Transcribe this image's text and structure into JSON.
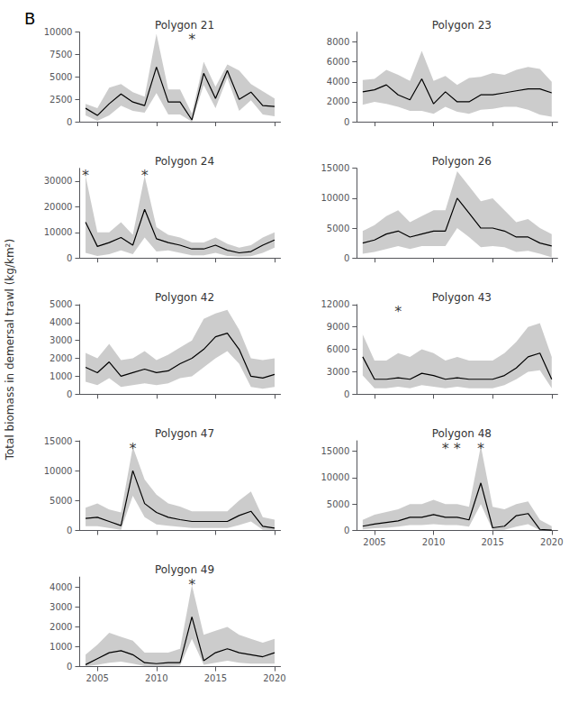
{
  "title": "B",
  "ylabel": "Total biomass in demersal trawl (kg/km²)",
  "chart_data": [
    {
      "type": "line",
      "title": "Polygon 21",
      "x": [
        2004,
        2005,
        2006,
        2007,
        2008,
        2009,
        2010,
        2011,
        2012,
        2013,
        2014,
        2015,
        2016,
        2017,
        2018,
        2019,
        2020
      ],
      "xlim": [
        2003.5,
        2020.5
      ],
      "xticks": [
        2005,
        2010,
        2015,
        2020
      ],
      "ylim": [
        0,
        10000
      ],
      "yticks": [
        0,
        2500,
        5000,
        7500,
        10000
      ],
      "grid": false,
      "tick_labels": "y",
      "series": [
        {
          "type": "band",
          "color": "#aaaaaa",
          "lower": [
            700,
            100,
            700,
            1800,
            1200,
            1000,
            3200,
            800,
            800,
            0,
            4100,
            1500,
            4900,
            1200,
            2400,
            800,
            600
          ],
          "upper": [
            2000,
            1500,
            3800,
            4200,
            3300,
            2800,
            9800,
            3600,
            3600,
            900,
            6700,
            3900,
            6400,
            5700,
            4200,
            3400,
            2600
          ]
        },
        {
          "type": "line",
          "color": "#000000",
          "values": [
            1500,
            700,
            2000,
            3100,
            2200,
            1800,
            6100,
            2200,
            2200,
            200,
            5400,
            2600,
            5700,
            2500,
            3300,
            1800,
            1700
          ]
        }
      ],
      "annotations": [
        {
          "x": 2013,
          "text": "*"
        }
      ]
    },
    {
      "type": "line",
      "title": "Polygon 23",
      "x": [
        2004,
        2005,
        2006,
        2007,
        2008,
        2009,
        2010,
        2011,
        2012,
        2013,
        2014,
        2015,
        2016,
        2017,
        2018,
        2019,
        2020
      ],
      "xlim": [
        2003.5,
        2020.5
      ],
      "xticks": [
        2005,
        2010,
        2015,
        2020
      ],
      "ylim": [
        0,
        9000
      ],
      "yticks": [
        0,
        2000,
        4000,
        6000,
        8000
      ],
      "grid": false,
      "tick_labels": "y",
      "series": [
        {
          "type": "band",
          "color": "#aaaaaa",
          "lower": [
            1700,
            2000,
            1800,
            1500,
            1100,
            1100,
            800,
            1500,
            1000,
            800,
            1200,
            1300,
            1500,
            1500,
            1200,
            700,
            500
          ],
          "upper": [
            4200,
            4300,
            5200,
            4700,
            4100,
            7100,
            4100,
            4600,
            3700,
            4400,
            4500,
            4900,
            4700,
            5200,
            5500,
            5300,
            4000
          ]
        },
        {
          "type": "line",
          "color": "#000000",
          "values": [
            3000,
            3200,
            3700,
            2700,
            2200,
            4300,
            1800,
            3000,
            2000,
            2000,
            2700,
            2700,
            2900,
            3100,
            3300,
            3300,
            2900
          ]
        }
      ]
    },
    {
      "type": "line",
      "title": "Polygon 24",
      "x": [
        2004,
        2005,
        2006,
        2007,
        2008,
        2009,
        2010,
        2011,
        2012,
        2013,
        2014,
        2015,
        2016,
        2017,
        2018,
        2019,
        2020
      ],
      "xlim": [
        2003.5,
        2020.5
      ],
      "xticks": [
        2005,
        2010,
        2015,
        2020
      ],
      "ylim": [
        0,
        35000
      ],
      "yticks": [
        0,
        10000,
        20000,
        30000
      ],
      "grid": false,
      "tick_labels": "y",
      "series": [
        {
          "type": "band",
          "color": "#aaaaaa",
          "lower": [
            2000,
            800,
            1500,
            3000,
            1500,
            8000,
            2500,
            3000,
            2000,
            1000,
            1000,
            2000,
            800,
            500,
            700,
            2000,
            4000
          ],
          "upper": [
            32000,
            10000,
            10000,
            14000,
            9000,
            32000,
            12000,
            9000,
            8000,
            6000,
            6000,
            8000,
            5500,
            4000,
            5000,
            8000,
            10000
          ]
        },
        {
          "type": "line",
          "color": "#000000",
          "values": [
            14000,
            4500,
            6000,
            8000,
            5000,
            19000,
            7500,
            6000,
            5000,
            3500,
            3500,
            5000,
            3000,
            2000,
            2500,
            5000,
            7000
          ]
        }
      ],
      "annotations": [
        {
          "x": 2004,
          "text": "*"
        },
        {
          "x": 2009,
          "text": "*"
        }
      ]
    },
    {
      "type": "line",
      "title": "Polygon 26",
      "x": [
        2004,
        2005,
        2006,
        2007,
        2008,
        2009,
        2010,
        2011,
        2012,
        2013,
        2014,
        2015,
        2016,
        2017,
        2018,
        2019,
        2020
      ],
      "xlim": [
        2003.5,
        2020.5
      ],
      "xticks": [
        2005,
        2010,
        2015,
        2020
      ],
      "ylim": [
        0,
        15000
      ],
      "yticks": [
        0,
        5000,
        10000,
        15000
      ],
      "grid": false,
      "tick_labels": "y",
      "series": [
        {
          "type": "band",
          "color": "#aaaaaa",
          "lower": [
            700,
            1000,
            1500,
            2000,
            1500,
            2000,
            2000,
            2000,
            5000,
            3500,
            1800,
            2000,
            1800,
            1000,
            1200,
            700,
            100
          ],
          "upper": [
            4500,
            5500,
            7000,
            8000,
            6000,
            7000,
            8000,
            8000,
            14500,
            12000,
            9500,
            10000,
            8000,
            6000,
            6500,
            5000,
            4000
          ]
        },
        {
          "type": "line",
          "color": "#000000",
          "values": [
            2500,
            3000,
            4000,
            4500,
            3500,
            4000,
            4500,
            4500,
            10000,
            7500,
            5000,
            5000,
            4500,
            3500,
            3500,
            2500,
            2000
          ]
        }
      ]
    },
    {
      "type": "line",
      "title": "Polygon 42",
      "x": [
        2004,
        2005,
        2006,
        2007,
        2008,
        2009,
        2010,
        2011,
        2012,
        2013,
        2014,
        2015,
        2016,
        2017,
        2018,
        2019,
        2020
      ],
      "xlim": [
        2003.5,
        2020.5
      ],
      "xticks": [
        2005,
        2010,
        2015,
        2020
      ],
      "ylim": [
        0,
        5000
      ],
      "yticks": [
        0,
        1000,
        2000,
        3000,
        4000,
        5000
      ],
      "grid": false,
      "tick_labels": "y",
      "series": [
        {
          "type": "band",
          "color": "#aaaaaa",
          "lower": [
            700,
            500,
            900,
            400,
            500,
            600,
            500,
            600,
            900,
            1000,
            1500,
            2000,
            2400,
            1700,
            400,
            300,
            400
          ],
          "upper": [
            2300,
            2000,
            2800,
            1900,
            2000,
            2400,
            1900,
            2200,
            2600,
            3000,
            4200,
            4500,
            4700,
            3600,
            2000,
            1900,
            2000
          ]
        },
        {
          "type": "line",
          "color": "#000000",
          "values": [
            1500,
            1200,
            1800,
            1000,
            1200,
            1400,
            1200,
            1300,
            1700,
            2000,
            2500,
            3200,
            3400,
            2500,
            1000,
            900,
            1100
          ]
        }
      ]
    },
    {
      "type": "line",
      "title": "Polygon 43",
      "x": [
        2004,
        2005,
        2006,
        2007,
        2008,
        2009,
        2010,
        2011,
        2012,
        2013,
        2014,
        2015,
        2016,
        2017,
        2018,
        2019,
        2020
      ],
      "xlim": [
        2003.5,
        2020.5
      ],
      "xticks": [
        2005,
        2010,
        2015,
        2020
      ],
      "ylim": [
        0,
        12000
      ],
      "yticks": [
        0,
        3000,
        6000,
        9000,
        12000
      ],
      "grid": false,
      "tick_labels": "y",
      "series": [
        {
          "type": "band",
          "color": "#aaaaaa",
          "lower": [
            2500,
            800,
            800,
            1000,
            800,
            1200,
            1000,
            800,
            1000,
            800,
            800,
            800,
            1200,
            2000,
            3000,
            3200,
            800
          ],
          "upper": [
            8000,
            4500,
            4500,
            5500,
            5000,
            6000,
            5500,
            4500,
            5000,
            4500,
            4500,
            4500,
            5500,
            7000,
            9000,
            9500,
            5000
          ]
        },
        {
          "type": "line",
          "color": "#000000",
          "values": [
            5000,
            2000,
            2000,
            2200,
            2000,
            2800,
            2500,
            2000,
            2200,
            2000,
            2000,
            2000,
            2500,
            3500,
            5000,
            5500,
            2000
          ]
        }
      ],
      "annotations": [
        {
          "x": 2007,
          "text": "*"
        }
      ]
    },
    {
      "type": "line",
      "title": "Polygon 47",
      "x": [
        2004,
        2005,
        2006,
        2007,
        2008,
        2009,
        2010,
        2011,
        2012,
        2013,
        2014,
        2015,
        2016,
        2017,
        2018,
        2019,
        2020
      ],
      "xlim": [
        2003.5,
        2020.5
      ],
      "xticks": [
        2005,
        2010,
        2015,
        2020
      ],
      "ylim": [
        0,
        15000
      ],
      "yticks": [
        0,
        5000,
        10000,
        15000
      ],
      "grid": false,
      "tick_labels": "y",
      "series": [
        {
          "type": "band",
          "color": "#aaaaaa",
          "lower": [
            700,
            700,
            400,
            100,
            5800,
            2200,
            1000,
            800,
            600,
            400,
            400,
            400,
            400,
            900,
            1500,
            100,
            50
          ],
          "upper": [
            3800,
            4500,
            3500,
            3000,
            14000,
            8500,
            6000,
            4500,
            4000,
            3200,
            3200,
            3200,
            3200,
            5000,
            6500,
            2200,
            1800
          ]
        },
        {
          "type": "line",
          "color": "#000000",
          "values": [
            2000,
            2200,
            1500,
            800,
            10000,
            4500,
            3000,
            2200,
            1800,
            1500,
            1500,
            1500,
            1500,
            2500,
            3200,
            700,
            400
          ]
        }
      ],
      "annotations": [
        {
          "x": 2008,
          "text": "*"
        }
      ]
    },
    {
      "type": "line",
      "title": "Polygon 48",
      "x": [
        2004,
        2005,
        2006,
        2007,
        2008,
        2009,
        2010,
        2011,
        2012,
        2013,
        2014,
        2015,
        2016,
        2017,
        2018,
        2019,
        2020
      ],
      "xlim": [
        2003.5,
        2020.5
      ],
      "xticks": [
        2005,
        2010,
        2015,
        2020
      ],
      "ylim": [
        0,
        17000
      ],
      "yticks": [
        0,
        5000,
        10000,
        15000
      ],
      "grid": false,
      "series": [
        {
          "type": "band",
          "color": "#aaaaaa",
          "lower": [
            200,
            400,
            500,
            700,
            1000,
            1000,
            1200,
            1000,
            1000,
            700,
            5000,
            50,
            100,
            700,
            1200,
            50,
            0
          ],
          "upper": [
            2000,
            3000,
            3500,
            4000,
            5000,
            5000,
            5800,
            5000,
            5000,
            4500,
            16000,
            4500,
            4000,
            5000,
            5500,
            2000,
            800
          ]
        },
        {
          "type": "line",
          "color": "#000000",
          "values": [
            800,
            1200,
            1500,
            1800,
            2500,
            2500,
            3000,
            2500,
            2500,
            2000,
            9000,
            500,
            800,
            2800,
            3200,
            200,
            50
          ]
        }
      ],
      "annotations": [
        {
          "x": 2011,
          "text": "*"
        },
        {
          "x": 2012,
          "text": "*"
        },
        {
          "x": 2014,
          "text": "*"
        }
      ]
    },
    {
      "type": "line",
      "title": "Polygon 49",
      "x": [
        2004,
        2005,
        2006,
        2007,
        2008,
        2009,
        2010,
        2011,
        2012,
        2013,
        2014,
        2015,
        2016,
        2017,
        2018,
        2019,
        2020
      ],
      "xlim": [
        2003.5,
        2020.5
      ],
      "xticks": [
        2005,
        2010,
        2015,
        2020
      ],
      "ylim": [
        0,
        4500
      ],
      "yticks": [
        0,
        1000,
        2000,
        3000,
        4000
      ],
      "grid": false,
      "series": [
        {
          "type": "band",
          "color": "#aaaaaa",
          "lower": [
            20,
            100,
            200,
            250,
            150,
            30,
            30,
            30,
            50,
            1400,
            100,
            200,
            300,
            200,
            150,
            150,
            150
          ],
          "upper": [
            600,
            1100,
            1700,
            1500,
            1300,
            700,
            700,
            700,
            900,
            4100,
            1600,
            1800,
            2000,
            1600,
            1400,
            1200,
            1400
          ]
        },
        {
          "type": "line",
          "color": "#000000",
          "values": [
            100,
            400,
            700,
            800,
            600,
            200,
            150,
            200,
            200,
            2500,
            300,
            700,
            900,
            700,
            600,
            500,
            700
          ]
        }
      ],
      "annotations": [
        {
          "x": 2013,
          "text": "*"
        }
      ]
    }
  ]
}
